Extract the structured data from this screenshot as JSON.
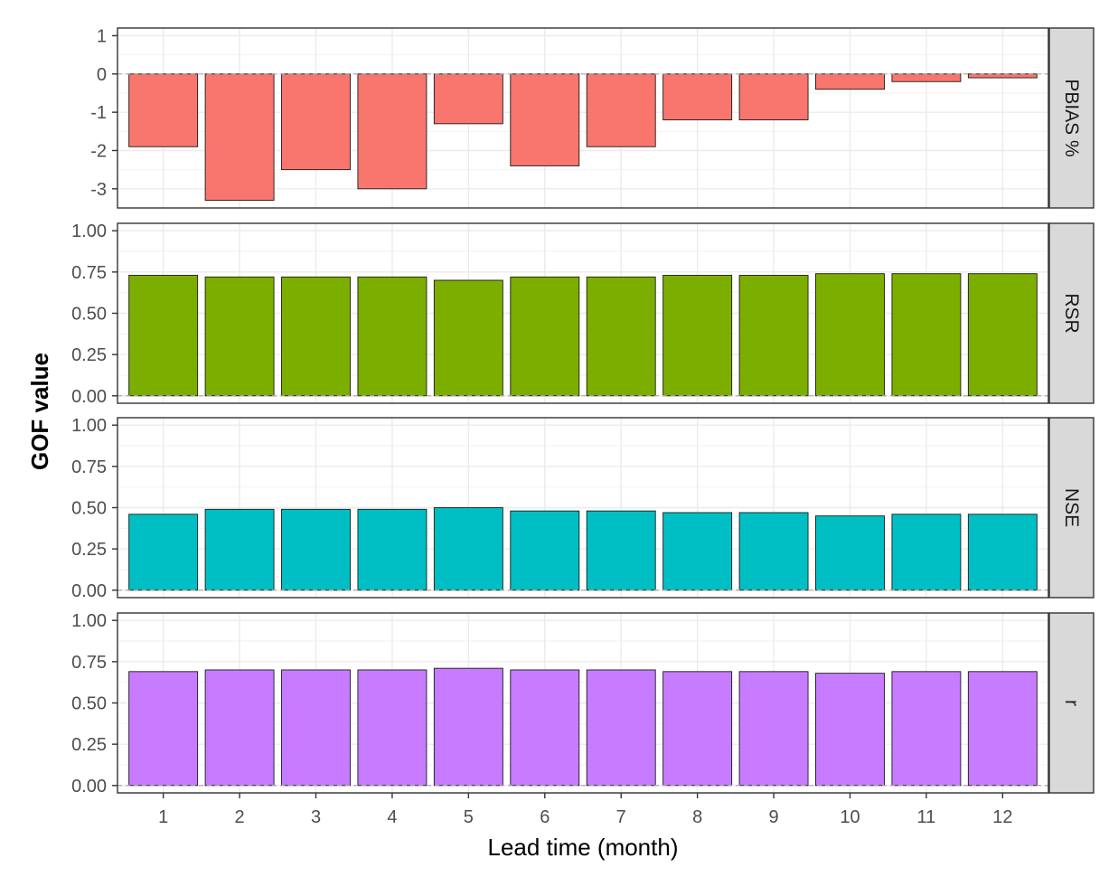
{
  "chart_data": {
    "type": "bar",
    "layout": "faceted-vertical",
    "xlabel": "Lead time (month)",
    "ylabel": "GOF value",
    "categories": [
      "1",
      "2",
      "3",
      "4",
      "5",
      "6",
      "7",
      "8",
      "9",
      "10",
      "11",
      "12"
    ],
    "grid": true,
    "legend": "none",
    "reference_line": 0,
    "panels": [
      {
        "name": "PBIAS %",
        "color": "#F8766D",
        "ylim": [
          -3.5,
          1.2
        ],
        "yticks": [
          "1",
          "0",
          "-1",
          "-2",
          "-3"
        ],
        "ytick_values": [
          1,
          0,
          -1,
          -2,
          -3
        ],
        "values": [
          -1.9,
          -3.3,
          -2.5,
          -3.0,
          -1.3,
          -2.4,
          -1.9,
          -1.2,
          -1.2,
          -0.4,
          -0.2,
          -0.1
        ]
      },
      {
        "name": "RSR",
        "color": "#7CAE00",
        "ylim": [
          -0.045,
          1.045
        ],
        "yticks": [
          "1.00",
          "0.75",
          "0.50",
          "0.25",
          "0.00"
        ],
        "ytick_values": [
          1.0,
          0.75,
          0.5,
          0.25,
          0.0
        ],
        "values": [
          0.73,
          0.72,
          0.72,
          0.72,
          0.7,
          0.72,
          0.72,
          0.73,
          0.73,
          0.74,
          0.74,
          0.74
        ]
      },
      {
        "name": "NSE",
        "color": "#00BFC4",
        "ylim": [
          -0.045,
          1.045
        ],
        "yticks": [
          "1.00",
          "0.75",
          "0.50",
          "0.25",
          "0.00"
        ],
        "ytick_values": [
          1.0,
          0.75,
          0.5,
          0.25,
          0.0
        ],
        "values": [
          0.46,
          0.49,
          0.49,
          0.49,
          0.5,
          0.48,
          0.48,
          0.47,
          0.47,
          0.45,
          0.46,
          0.46
        ]
      },
      {
        "name": "r",
        "color": "#C77CFF",
        "ylim": [
          -0.045,
          1.045
        ],
        "yticks": [
          "1.00",
          "0.75",
          "0.50",
          "0.25",
          "0.00"
        ],
        "ytick_values": [
          1.0,
          0.75,
          0.5,
          0.25,
          0.0
        ],
        "values": [
          0.69,
          0.7,
          0.7,
          0.7,
          0.71,
          0.7,
          0.7,
          0.69,
          0.69,
          0.68,
          0.69,
          0.69
        ]
      }
    ]
  }
}
